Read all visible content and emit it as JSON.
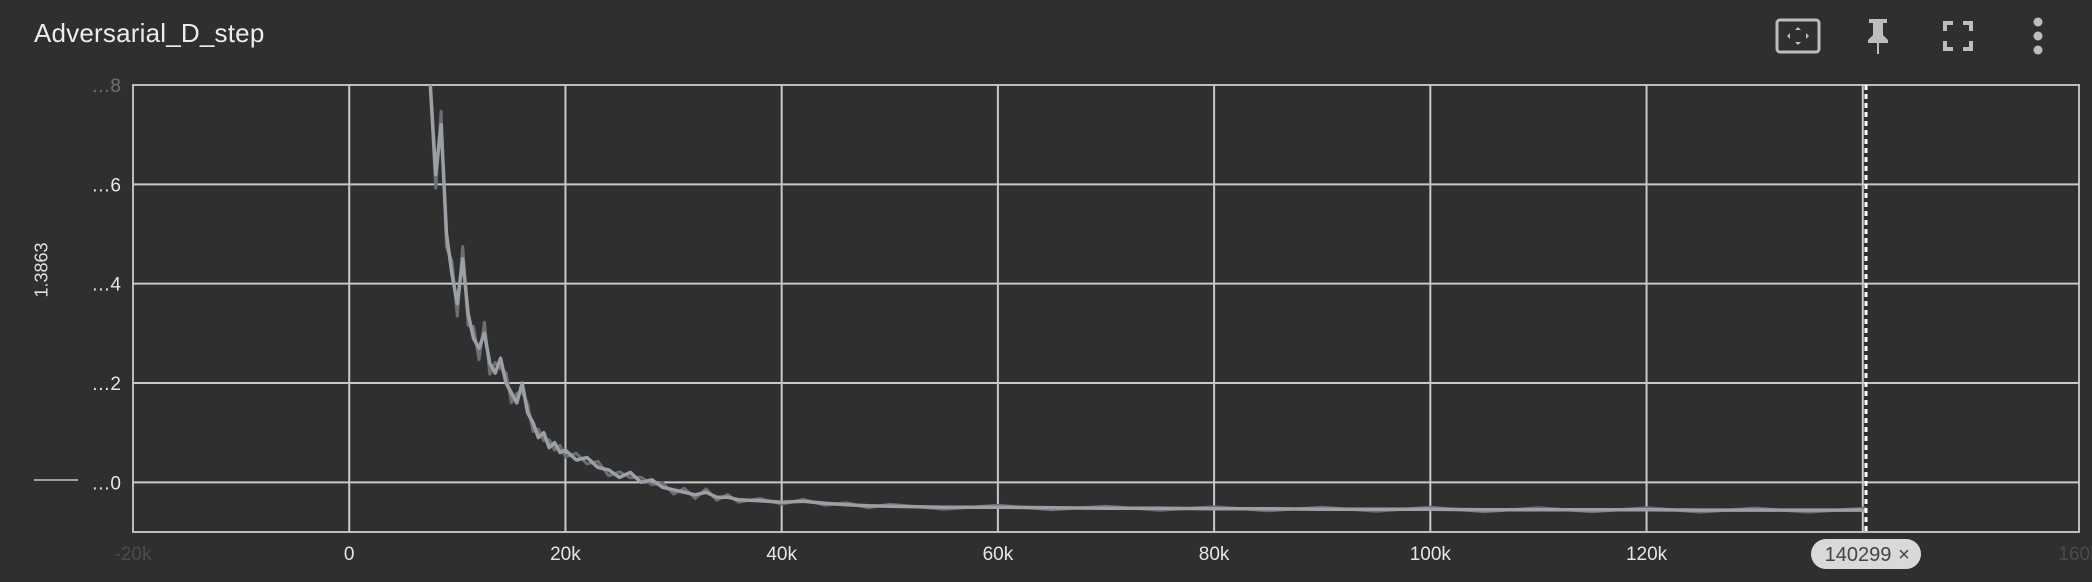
{
  "header": {
    "title": "Adversarial_D_step",
    "toolbar": [
      {
        "icon": "fit-domain-icon"
      },
      {
        "icon": "pin-icon"
      },
      {
        "icon": "fullscreen-icon"
      },
      {
        "icon": "more-vert-icon"
      }
    ]
  },
  "chart_data": {
    "type": "line",
    "ylabel": "1.3863",
    "x_tick_labels": [
      "-20k",
      "0",
      "20k",
      "40k",
      "60k",
      "80k",
      "100k",
      "120k",
      "140k"
    ],
    "x_ticks": [
      -20000,
      0,
      20000,
      40000,
      60000,
      80000,
      100000,
      120000,
      140000
    ],
    "xlim": [
      -20000,
      160000
    ],
    "right_edge_tick_label": "160k",
    "y_tick_labels": [
      "…8",
      "…6",
      "…4",
      "…2",
      "…0"
    ],
    "y_ticks": [
      0.8,
      0.6,
      0.4,
      0.2,
      0.0
    ],
    "ylim": [
      -0.1,
      0.8
    ],
    "grid": true,
    "cursor_step": 140299,
    "cursor_label": "140299",
    "series_color": "#9aa0a6",
    "raw_color": "#6b6f73",
    "series": [
      {
        "x": [
          7500,
          8000,
          8500,
          9000,
          9500,
          10000,
          10500,
          11000,
          11500,
          12000,
          12500,
          13000,
          13500,
          14000,
          14500,
          15000,
          15500,
          16000,
          16500,
          17000,
          17500,
          18000,
          18500,
          19000,
          19500,
          20000,
          21000,
          22000,
          23000,
          24000,
          25000,
          26000,
          27000,
          28000,
          29000,
          30000,
          31000,
          32000,
          33000,
          34000,
          35000,
          36000,
          38000,
          40000,
          42000,
          44000,
          46000,
          48000,
          50000,
          55000,
          60000,
          65000,
          70000,
          75000,
          80000,
          85000,
          90000,
          95000,
          100000,
          105000,
          110000,
          115000,
          120000,
          125000,
          130000,
          135000,
          140299
        ],
        "y": [
          0.8,
          0.62,
          0.72,
          0.5,
          0.42,
          0.36,
          0.45,
          0.34,
          0.29,
          0.27,
          0.3,
          0.24,
          0.22,
          0.25,
          0.2,
          0.18,
          0.16,
          0.2,
          0.14,
          0.12,
          0.09,
          0.1,
          0.07,
          0.08,
          0.06,
          0.065,
          0.045,
          0.05,
          0.03,
          0.025,
          0.01,
          0.02,
          0.0,
          0.005,
          -0.01,
          -0.015,
          -0.02,
          -0.025,
          -0.02,
          -0.03,
          -0.03,
          -0.035,
          -0.037,
          -0.04,
          -0.038,
          -0.042,
          -0.045,
          -0.047,
          -0.048,
          -0.05,
          -0.05,
          -0.051,
          -0.052,
          -0.052,
          -0.053,
          -0.053,
          -0.054,
          -0.054,
          -0.054,
          -0.055,
          -0.055,
          -0.055,
          -0.055,
          -0.056,
          -0.056,
          -0.056,
          -0.056
        ]
      }
    ]
  }
}
